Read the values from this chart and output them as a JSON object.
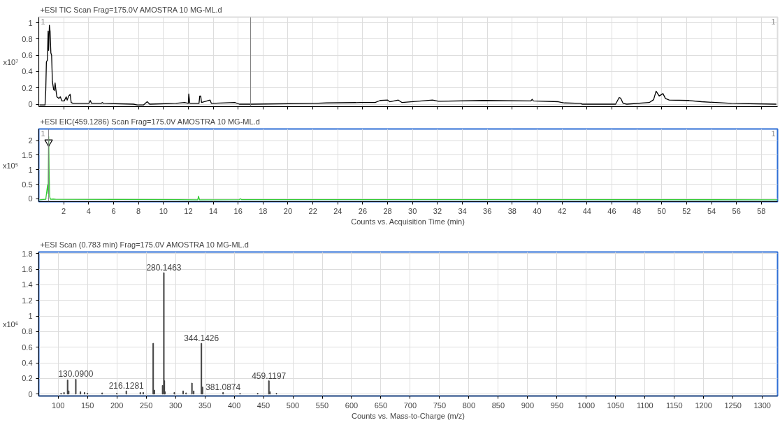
{
  "chart_data": [
    {
      "type": "line",
      "title": "+ESI TIC Scan Frag=175.0V AMOSTRA 10 MG-ML.d",
      "ylabel": "x10⁷",
      "color": "#000000",
      "x": [
        0.06,
        0.5,
        0.56,
        0.61,
        0.69,
        0.75,
        0.79,
        0.85,
        0.91,
        0.97,
        1.03,
        1.09,
        1.19,
        1.25,
        1.31,
        1.37,
        1.45,
        1.61,
        1.73,
        1.85,
        2.04,
        2.2,
        2.28,
        2.4,
        2.52,
        2.6,
        2.74,
        4.03,
        4.13,
        4.23,
        5.0,
        5.1,
        5.2,
        7.6,
        7.9,
        8.4,
        8.7,
        8.9,
        11.0,
        11.7,
        12.0,
        12.04,
        12.12,
        12.86,
        12.92,
        13.0,
        13.06,
        13.75,
        13.85,
        15.73,
        16.1,
        17.1,
        22.1,
        23.1,
        25.85,
        27.0,
        27.4,
        28.0,
        28.17,
        28.86,
        29.16,
        30.75,
        31.6,
        32.1,
        35.7,
        39.5,
        39.6,
        39.7,
        41.7,
        42.2,
        43.5,
        43.6,
        46.3,
        46.58,
        46.7,
        46.9,
        47.2,
        49.0,
        49.35,
        49.55,
        49.8,
        50.1,
        50.3,
        50.6,
        52.2,
        53.2,
        55.6,
        59.2
      ],
      "values": [
        -0.01,
        -0.01,
        0.17,
        0.52,
        0.54,
        0.9,
        0.66,
        0.97,
        0.89,
        0.63,
        0.6,
        0.28,
        0.18,
        0.17,
        0.26,
        0.18,
        0.09,
        0.07,
        0.09,
        0.04,
        0.04,
        0.09,
        0.05,
        0.1,
        0.12,
        0.02,
        0.01,
        0.01,
        0.045,
        0.01,
        0.01,
        0.02,
        0.01,
        0,
        -0.01,
        -0.01,
        0.03,
        0,
        0.01,
        0.02,
        0.01,
        0.125,
        0.01,
        0.01,
        0.1,
        0.1,
        0.02,
        0.05,
        0.01,
        0.02,
        0,
        0,
        0.01,
        0.015,
        0.02,
        0.02,
        0.045,
        0.05,
        0.03,
        0.05,
        0.02,
        0.04,
        0.05,
        0.035,
        0.045,
        0.04,
        0.06,
        0.04,
        0.03,
        0.015,
        0.01,
        0,
        0,
        0.08,
        0.075,
        0.01,
        0,
        0.02,
        0.055,
        0.16,
        0.1,
        0.13,
        0.07,
        0.05,
        0.045,
        0.03,
        0.01,
        0
      ],
      "xlim": [
        0,
        59.3
      ],
      "ylim": [
        -0.03,
        1.07
      ],
      "xticks": [
        2,
        4,
        6,
        8,
        10,
        12,
        14,
        16,
        18,
        20,
        22,
        24,
        26,
        28,
        30,
        32,
        34,
        36,
        38,
        40,
        42,
        44,
        46,
        48,
        50,
        52,
        54,
        56,
        58
      ],
      "yticks": [
        0,
        0.2,
        0.4,
        0.6,
        0.8,
        1
      ],
      "tick_labels": "y",
      "grid": true,
      "ref_lines": [
        {
          "axis": "x",
          "value": 17,
          "color": "#808080"
        }
      ],
      "annotations": [
        "1",
        "1"
      ]
    },
    {
      "type": "line",
      "title": "+ESI EIC(459.1286) Scan Frag=175.0V AMOSTRA 10 MG-ML.d",
      "ylabel": "x10⁵",
      "xlabel": "Counts vs. Acquisition Time (min)",
      "series": [
        {
          "type": "line",
          "color": "#33cc33",
          "x": [
            0.06,
            0.56,
            0.65,
            0.71,
            0.75,
            0.79,
            0.83,
            0.87,
            0.95,
            1.15,
            1.35,
            12.76,
            12.82,
            12.9,
            16.1,
            16.2,
            16.27,
            59.3
          ],
          "values": [
            -0.035,
            -0.02,
            0.29,
            0.48,
            0.18,
            2.14,
            0.96,
            0.07,
            -0.02,
            -0.01,
            -0.02,
            -0.035,
            0.09,
            -0.035,
            -0.03,
            0,
            -0.03,
            -0.035
          ]
        },
        {
          "type": "scatter",
          "color": "#000000",
          "marker": "triangle",
          "x": [
            0.79
          ],
          "values": [
            1.95
          ]
        }
      ],
      "xlim": [
        0,
        59.3
      ],
      "ylim": [
        -0.1,
        2.4
      ],
      "xticks": [
        2,
        4,
        6,
        8,
        10,
        12,
        14,
        16,
        18,
        20,
        22,
        24,
        26,
        28,
        30,
        32,
        34,
        36,
        38,
        40,
        42,
        44,
        46,
        48,
        50,
        52,
        54,
        56,
        58
      ],
      "yticks": [
        0,
        0.5,
        1,
        1.5,
        2
      ],
      "grid": true,
      "ref_lines": [
        {
          "axis": "x",
          "value": 0.79,
          "color": "#808080"
        }
      ],
      "annotations": [
        "1",
        "1"
      ]
    },
    {
      "type": "bar",
      "title": "+ESI Scan (0.783 min) Frag=175.0V AMOSTRA 10 MG-ML.d",
      "ylabel": "x10⁶",
      "xlabel": "Counts vs. Mass-to-Charge (m/z)",
      "color": "#404040",
      "x": [
        105,
        110,
        116.1,
        118,
        130.09,
        138,
        145,
        150,
        175,
        200,
        216.13,
        240,
        245,
        262,
        264,
        278,
        280.15,
        281,
        282,
        298,
        313,
        318,
        328,
        331,
        344.14,
        346,
        381.09,
        410,
        440,
        459.12,
        461,
        472
      ],
      "values": [
        0.01,
        0.02,
        0.18,
        0.04,
        0.19,
        0.03,
        0.02,
        0.01,
        0.015,
        0.01,
        0.04,
        0.02,
        0.02,
        0.65,
        0.05,
        0.11,
        1.555,
        0.17,
        0.03,
        0.02,
        0.04,
        0.015,
        0.14,
        0.04,
        0.65,
        0.09,
        0.02,
        0.01,
        0.01,
        0.17,
        0.03,
        0.01
      ],
      "xlim": [
        67,
        1326
      ],
      "ylim": [
        -0.025,
        1.82
      ],
      "xticks": [
        100,
        150,
        200,
        250,
        300,
        350,
        400,
        450,
        500,
        550,
        600,
        650,
        700,
        750,
        800,
        850,
        900,
        950,
        1000,
        1050,
        1100,
        1150,
        1200,
        1250,
        1300
      ],
      "yticks": [
        0,
        0.2,
        0.4,
        0.6,
        0.8,
        1,
        1.2,
        1.4,
        1.6,
        1.8
      ],
      "grid": true,
      "annotations": [
        {
          "text": "130.0900",
          "x": 130.09,
          "y": 0.19
        },
        {
          "text": "216.1281",
          "x": 216.13,
          "y": 0.04
        },
        {
          "text": "280.1463",
          "x": 280.15,
          "y": 1.555
        },
        {
          "text": "344.1426",
          "x": 344.14,
          "y": 0.65
        },
        {
          "text": "381.0874",
          "x": 381.09,
          "y": 0.02
        },
        {
          "text": "459.1197",
          "x": 459.12,
          "y": 0.17
        }
      ]
    }
  ]
}
